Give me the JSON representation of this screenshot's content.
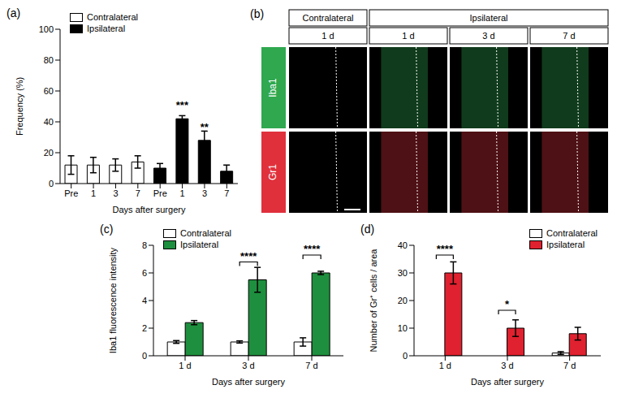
{
  "chart_data": [
    {
      "type": "bar",
      "title": "(a)",
      "x_label": "Days after surgery",
      "y_label": "Frequency (%)",
      "categories": [
        "Pre",
        "1",
        "3",
        "7",
        "Pre",
        "1",
        "3",
        "7"
      ],
      "series": [
        {
          "name": "Contralateral",
          "color": "#ffffff",
          "values": [
            12,
            12,
            12,
            14,
            null,
            null,
            null,
            null
          ],
          "errors": [
            6,
            5,
            4,
            4,
            null,
            null,
            null,
            null
          ]
        },
        {
          "name": "Ipsilateral",
          "color": "#000000",
          "values": [
            null,
            null,
            null,
            null,
            10,
            42,
            28,
            8
          ],
          "errors": [
            null,
            null,
            null,
            null,
            3,
            2,
            6,
            4
          ]
        }
      ],
      "significance": [
        null,
        null,
        null,
        null,
        null,
        "***",
        "**",
        null
      ],
      "ylim": [
        0,
        100
      ],
      "yticks": [
        0,
        20,
        40,
        60,
        80,
        100
      ],
      "grid": false,
      "legend": "top-left"
    },
    {
      "type": "bar",
      "title": "(c)",
      "x_label": "Days after surgery",
      "y_label": "Iba1 fluorescence intensity",
      "categories": [
        "1 d",
        "3 d",
        "7 d"
      ],
      "series": [
        {
          "name": "Contralateral",
          "color": "#ffffff",
          "values": [
            1.0,
            1.0,
            1.0
          ],
          "errors": [
            0.1,
            0.08,
            0.3
          ]
        },
        {
          "name": "Ipsilateral",
          "color": "#1e8f3e",
          "values": [
            2.4,
            5.5,
            6.0
          ],
          "errors": [
            0.15,
            0.9,
            0.12
          ]
        }
      ],
      "significance": [
        null,
        "****",
        "****"
      ],
      "ylim": [
        0,
        8
      ],
      "yticks": [
        0,
        2,
        4,
        6,
        8
      ],
      "grid": false,
      "legend": "top-left"
    },
    {
      "type": "bar",
      "title": "(d)",
      "x_label": "Days after surgery",
      "y_label": "Number of Gr⁺ cells / area",
      "categories": [
        "1 d",
        "3 d",
        "7 d"
      ],
      "series": [
        {
          "name": "Contralateral",
          "color": "#ffffff",
          "values": [
            0,
            0,
            1
          ],
          "errors": [
            0,
            0,
            0.5
          ]
        },
        {
          "name": "Ipsilateral",
          "color": "#e0212f",
          "values": [
            30,
            10,
            8
          ],
          "errors": [
            4,
            3,
            2.3
          ]
        }
      ],
      "significance": [
        "****",
        "*",
        null
      ],
      "ylim": [
        0,
        40
      ],
      "yticks": [
        0,
        10,
        20,
        30,
        40
      ],
      "grid": false,
      "legend": "top-right"
    }
  ],
  "image_panel": {
    "title": "(b)",
    "columns": [
      {
        "header": "Contralateral",
        "times": [
          "1 d"
        ]
      },
      {
        "header": "Ipsilateral",
        "times": [
          "1 d",
          "3 d",
          "7 d"
        ]
      }
    ],
    "rows": [
      {
        "name": "Iba1",
        "color": "#2fa84f"
      },
      {
        "name": "Gr1",
        "color": "#e0303c"
      }
    ]
  }
}
